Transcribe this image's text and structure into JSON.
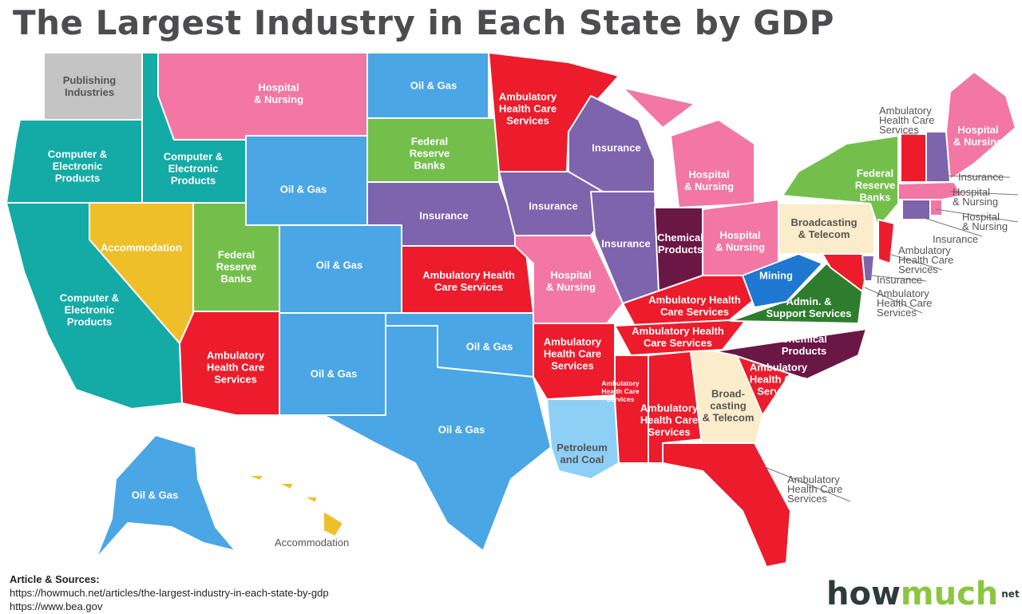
{
  "title": "The Largest Industry in Each State by GDP",
  "colors": {
    "teal": "#14aaa6",
    "gray": "#c4c4c4",
    "pink": "#f277a4",
    "blue": "#4aa6e5",
    "red": "#ec1c2c",
    "green": "#74bf4b",
    "purple": "#7e63ad",
    "plum": "#6a1746",
    "yellow": "#efbf2a",
    "cream": "#fbeccb",
    "lightblue": "#8ecff6",
    "darkgreen": "#2e7d2e",
    "midblue": "#1e78d2"
  },
  "states": [
    {
      "id": "WA",
      "industry": "Publishing Industries",
      "color": "gray",
      "lines": [
        "Publishing",
        "Industries"
      ],
      "dark": true
    },
    {
      "id": "OR",
      "industry": "Computer & Electronic Products",
      "color": "teal",
      "lines": [
        "Computer &",
        "Electronic",
        "Products"
      ]
    },
    {
      "id": "ID",
      "industry": "Computer & Electronic Products",
      "color": "teal",
      "lines": [
        "Computer &",
        "Electronic",
        "Products"
      ]
    },
    {
      "id": "CA",
      "industry": "Computer & Electronic Products",
      "color": "teal",
      "lines": [
        "Computer &",
        "Electronic",
        "Products"
      ]
    },
    {
      "id": "MT",
      "industry": "Hospital & Nursing",
      "color": "pink",
      "lines": [
        "Hospital",
        "& Nursing"
      ]
    },
    {
      "id": "WY",
      "industry": "Oil & Gas",
      "color": "blue",
      "lines": [
        "Oil & Gas"
      ]
    },
    {
      "id": "NV",
      "industry": "Accommodation",
      "color": "yellow",
      "lines": [
        "Accommodation"
      ]
    },
    {
      "id": "UT",
      "industry": "Federal Reserve Banks",
      "color": "green",
      "lines": [
        "Federal",
        "Reserve",
        "Banks"
      ]
    },
    {
      "id": "CO",
      "industry": "Oil & Gas",
      "color": "blue",
      "lines": [
        "Oil & Gas"
      ]
    },
    {
      "id": "AZ",
      "industry": "Ambulatory Health Care Services",
      "color": "red",
      "lines": [
        "Ambulatory",
        "Health Care",
        "Services"
      ]
    },
    {
      "id": "NM",
      "industry": "Oil & Gas",
      "color": "blue",
      "lines": [
        "Oil & Gas"
      ]
    },
    {
      "id": "ND",
      "industry": "Oil & Gas",
      "color": "blue",
      "lines": [
        "Oil & Gas"
      ]
    },
    {
      "id": "SD",
      "industry": "Federal Reserve Banks",
      "color": "green",
      "lines": [
        "Federal",
        "Reserve",
        "Banks"
      ]
    },
    {
      "id": "NE",
      "industry": "Insurance",
      "color": "purple",
      "lines": [
        "Insurance"
      ]
    },
    {
      "id": "KS",
      "industry": "Ambulatory Health Care Services",
      "color": "red",
      "lines": [
        "Ambulatory Health",
        "Care Services"
      ]
    },
    {
      "id": "OK",
      "industry": "Oil & Gas",
      "color": "blue",
      "lines": [
        "Oil & Gas"
      ]
    },
    {
      "id": "TX",
      "industry": "Oil & Gas",
      "color": "blue",
      "lines": [
        "Oil & Gas"
      ]
    },
    {
      "id": "MN",
      "industry": "Ambulatory Health Care Services",
      "color": "red",
      "lines": [
        "Ambulatory",
        "Health Care",
        "Services"
      ]
    },
    {
      "id": "IA",
      "industry": "Insurance",
      "color": "purple",
      "lines": [
        "Insurance"
      ]
    },
    {
      "id": "MO",
      "industry": "Hospital & Nursing",
      "color": "pink",
      "lines": [
        "Hospital",
        "& Nursing"
      ]
    },
    {
      "id": "AR",
      "industry": "Ambulatory Health Care Services",
      "color": "red",
      "lines": [
        "Ambulatory",
        "Health Care",
        "Services"
      ]
    },
    {
      "id": "LA",
      "industry": "Petroleum and Coal",
      "color": "lightblue",
      "lines": [
        "Petroleum",
        "and Coal"
      ],
      "dark": true
    },
    {
      "id": "WI",
      "industry": "Insurance",
      "color": "purple",
      "lines": [
        "Insurance"
      ]
    },
    {
      "id": "IL",
      "industry": "Insurance",
      "color": "purple",
      "lines": [
        "Insurance"
      ]
    },
    {
      "id": "MI",
      "industry": "Hospital & Nursing",
      "color": "pink",
      "lines": [
        "Hospital",
        "& Nursing"
      ]
    },
    {
      "id": "IN",
      "industry": "Chemical Products",
      "color": "plum",
      "lines": [
        "Chemical",
        "Products"
      ]
    },
    {
      "id": "OH",
      "industry": "Hospital & Nursing",
      "color": "pink",
      "lines": [
        "Hospital",
        "& Nursing"
      ]
    },
    {
      "id": "KY",
      "industry": "Ambulatory Health Care Services",
      "color": "red",
      "lines": [
        "Ambulatory Health",
        "Care Services"
      ]
    },
    {
      "id": "TN",
      "industry": "Ambulatory Health Care Services",
      "color": "red",
      "lines": [
        "Ambulatory Health",
        "Care Services"
      ]
    },
    {
      "id": "MS",
      "industry": "Ambulatory Health Care Services",
      "color": "red",
      "lines": [
        "Ambulatory",
        "Health Care",
        "Services"
      ],
      "small": true
    },
    {
      "id": "AL",
      "industry": "Ambulatory Health Care Services",
      "color": "red",
      "lines": [
        "Ambulatory",
        "Health Care",
        "Services"
      ]
    },
    {
      "id": "GA",
      "industry": "Broadcasting & Telecom",
      "color": "cream",
      "lines": [
        "Broad-",
        "casting",
        "& Telecom"
      ],
      "dark": true
    },
    {
      "id": "FL",
      "industry": "Ambulatory Health Care Services",
      "color": "red",
      "lines": []
    },
    {
      "id": "SC",
      "industry": "Ambulatory Health Care Services",
      "color": "red",
      "lines": [
        "Ambulatory",
        "Health Care",
        "Services"
      ]
    },
    {
      "id": "NC",
      "industry": "Chemical Products",
      "color": "plum",
      "lines": [
        "Chemical",
        "Products"
      ]
    },
    {
      "id": "VA",
      "industry": "Admin. & Support Services",
      "color": "darkgreen",
      "lines": [
        "Admin. &",
        "Support Services"
      ]
    },
    {
      "id": "WV",
      "industry": "Mining",
      "color": "midblue",
      "lines": [
        "Mining"
      ]
    },
    {
      "id": "PA",
      "industry": "Broadcasting & Telecom",
      "color": "cream",
      "lines": [
        "Broadcasting",
        "& Telecom"
      ],
      "dark": true
    },
    {
      "id": "NY",
      "industry": "Federal Reserve Banks",
      "color": "green",
      "lines": [
        "Federal",
        "Reserve",
        "Banks"
      ]
    },
    {
      "id": "MD",
      "industry": "Ambulatory Health Care Services",
      "color": "red",
      "lines": []
    },
    {
      "id": "DE",
      "industry": "Insurance",
      "color": "purple",
      "lines": []
    },
    {
      "id": "NJ",
      "industry": "Ambulatory Health Care Services",
      "color": "red",
      "lines": []
    },
    {
      "id": "CT",
      "industry": "Insurance",
      "color": "purple",
      "lines": []
    },
    {
      "id": "RI",
      "industry": "Hospital & Nursing",
      "color": "pink",
      "lines": []
    },
    {
      "id": "MA",
      "industry": "Hospital & Nursing",
      "color": "pink",
      "lines": []
    },
    {
      "id": "VT",
      "industry": "Ambulatory Health Care Services",
      "color": "red",
      "lines": []
    },
    {
      "id": "NH",
      "industry": "Insurance",
      "color": "purple",
      "lines": []
    },
    {
      "id": "ME",
      "industry": "Hospital & Nursing",
      "color": "pink",
      "lines": [
        "Hospital",
        "& Nursing"
      ]
    },
    {
      "id": "AK",
      "industry": "Oil & Gas",
      "color": "blue",
      "lines": [
        "Oil & Gas"
      ]
    },
    {
      "id": "HI",
      "industry": "Accommodation",
      "color": "yellow",
      "lines": []
    }
  ],
  "callouts": [
    {
      "id": "VT",
      "lines": [
        "Ambulatory",
        "Health Care",
        "Services"
      ]
    },
    {
      "id": "NH",
      "lines": [
        "Insurance"
      ]
    },
    {
      "id": "MA",
      "lines": [
        "Hospital",
        "& Nursing"
      ]
    },
    {
      "id": "RI",
      "lines": [
        "Hospital",
        "& Nursing"
      ]
    },
    {
      "id": "CT",
      "lines": [
        "Insurance"
      ]
    },
    {
      "id": "NJ",
      "lines": [
        "Ambulatory",
        "Health Care",
        "Services"
      ]
    },
    {
      "id": "DE",
      "lines": [
        "Insurance"
      ]
    },
    {
      "id": "MD",
      "lines": [
        "Ambulatory",
        "Health Care",
        "Services"
      ]
    },
    {
      "id": "FL",
      "lines": [
        "Ambulatory",
        "Health Care",
        "Services"
      ]
    },
    {
      "id": "HI",
      "lines": [
        "Accommodation"
      ]
    }
  ],
  "sources": {
    "heading": "Article & Sources:",
    "url1": "https://howmuch.net/articles/the-largest-industry-in-each-state-by-gdp",
    "url2": "https://www.bea.gov"
  },
  "logo": {
    "how": "how",
    "much": "much",
    "net": "net"
  }
}
